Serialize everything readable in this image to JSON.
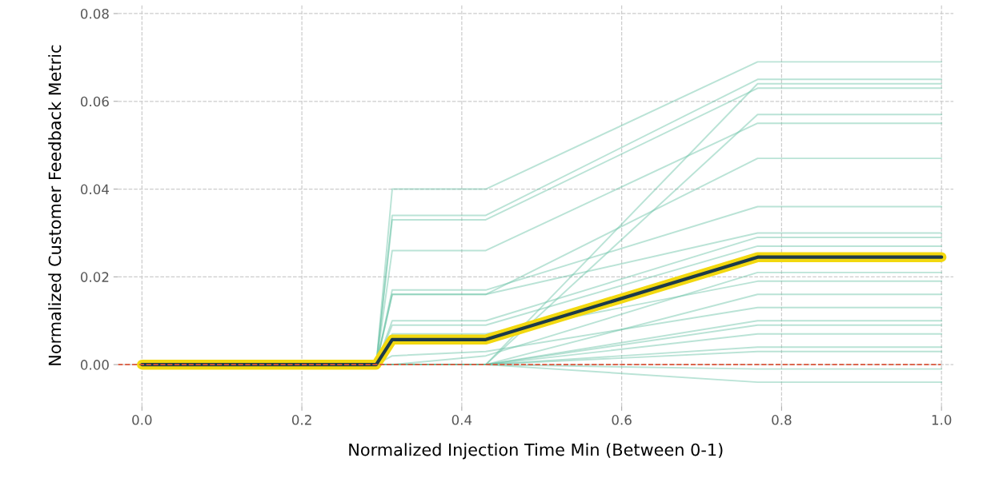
{
  "chart_data": {
    "type": "line",
    "xlabel": "Normalized Injection Time Min (Between 0-1)",
    "ylabel": "Normalized Customer Feedback Metric",
    "x": [
      0,
      0.293,
      0.313,
      0.43,
      0.77,
      1.0
    ],
    "series": [
      {
        "color": "#66c2a5",
        "values": [
          0,
          0,
          0.04,
          0.04,
          0.069,
          0.069
        ]
      },
      {
        "color": "#66c2a5",
        "values": [
          0,
          0,
          0.034,
          0.034,
          0.065,
          0.065
        ]
      },
      {
        "color": "#66c2a5",
        "values": [
          0,
          0,
          0.033,
          0.033,
          0.063,
          0.063
        ]
      },
      {
        "color": "#66c2a5",
        "values": [
          0,
          0,
          0.026,
          0.026,
          0.055,
          0.055
        ]
      },
      {
        "color": "#66c2a5",
        "values": [
          0,
          0,
          0.016,
          0.016,
          0.047,
          0.047
        ]
      },
      {
        "color": "#66c2a5",
        "values": [
          0,
          0,
          0.017,
          0.017,
          0.036,
          0.036
        ]
      },
      {
        "color": "#66c2a5",
        "values": [
          0,
          0,
          0.016,
          0.016,
          0.03,
          0.03
        ]
      },
      {
        "color": "#66c2a5",
        "values": [
          0,
          0,
          0.01,
          0.01,
          0.029,
          0.029
        ]
      },
      {
        "color": "#66c2a5",
        "values": [
          0,
          0,
          0.009,
          0.009,
          0.027,
          0.027
        ]
      },
      {
        "color": "#66c2a5",
        "values": [
          0,
          0,
          0.007,
          0.007,
          0.019,
          0.019
        ]
      },
      {
        "color": "#66c2a5",
        "values": [
          0,
          0,
          0.002,
          0.003,
          0.013,
          0.013
        ]
      },
      {
        "color": "#66c2a5",
        "values": [
          0,
          0,
          0,
          0,
          0.064,
          0.064
        ]
      },
      {
        "color": "#66c2a5",
        "values": [
          0,
          0,
          0,
          0,
          0.057,
          0.057
        ]
      },
      {
        "color": "#66c2a5",
        "values": [
          0,
          0,
          0,
          0.002,
          0.021,
          0.021
        ]
      },
      {
        "color": "#66c2a5",
        "values": [
          0,
          0,
          0,
          0,
          0.016,
          0.016
        ]
      },
      {
        "color": "#66c2a5",
        "values": [
          0,
          0,
          0,
          0,
          0.01,
          0.01
        ]
      },
      {
        "color": "#66c2a5",
        "values": [
          0,
          0,
          0,
          0,
          0.009,
          0.009
        ]
      },
      {
        "color": "#66c2a5",
        "values": [
          0,
          0,
          0,
          0,
          0.007,
          0.007
        ]
      },
      {
        "color": "#66c2a5",
        "values": [
          0,
          0,
          0,
          0,
          0.004,
          0.004
        ]
      },
      {
        "color": "#66c2a5",
        "values": [
          0,
          0,
          0,
          0,
          0.003,
          0.003
        ]
      },
      {
        "color": "#66c2a5",
        "values": [
          0,
          0,
          0,
          0,
          -0.001,
          -0.001
        ]
      },
      {
        "color": "#66c2a5",
        "values": [
          0,
          0,
          0,
          0,
          -0.004,
          -0.004
        ]
      },
      {
        "color": "#f2d80f",
        "values": [
          0,
          0,
          0.0057,
          0.0057,
          0.0245,
          0.0245
        ]
      },
      {
        "color": "#1c3a4a",
        "values": [
          0,
          0,
          0.0057,
          0.0057,
          0.0245,
          0.0245
        ]
      }
    ],
    "xlim": [
      -0.03,
      1.015
    ],
    "ylim": [
      -0.0095,
      0.082
    ],
    "xticks": [
      {
        "value": 0,
        "label": "0.0"
      },
      {
        "value": 0.2,
        "label": "0.2"
      },
      {
        "value": 0.4,
        "label": "0.4"
      },
      {
        "value": 0.6,
        "label": "0.6"
      },
      {
        "value": 0.8,
        "label": "0.8"
      },
      {
        "value": 1.0,
        "label": "1.0"
      }
    ],
    "yticks": [
      {
        "value": 0,
        "label": "0.00"
      },
      {
        "value": 0.02,
        "label": "0.02"
      },
      {
        "value": 0.04,
        "label": "0.04"
      },
      {
        "value": 0.06,
        "label": "0.06"
      },
      {
        "value": 0.08,
        "label": "0.08"
      }
    ],
    "ref_lines": [
      {
        "axis": "y",
        "value": 0,
        "label": null,
        "color": "#d9553a",
        "line_style": "dashed"
      }
    ],
    "grid": true,
    "line_style": "solid"
  }
}
